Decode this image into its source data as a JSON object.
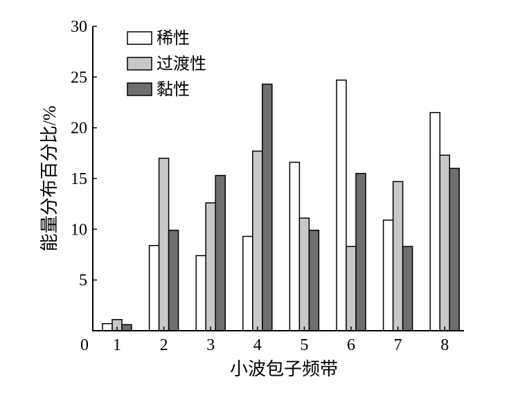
{
  "chart_data": {
    "type": "bar",
    "title": "",
    "xlabel": "小波包子频带",
    "ylabel": "能量分布百分比/%",
    "categories": [
      "1",
      "2",
      "3",
      "4",
      "5",
      "6",
      "7",
      "8"
    ],
    "ylim": [
      0,
      30
    ],
    "yticks": [
      5,
      10,
      15,
      20,
      25,
      30
    ],
    "origin_label": "0",
    "legend_position": "top-left",
    "grid": false,
    "series": [
      {
        "name": "稀性",
        "color": "#ffffff",
        "values": [
          0.7,
          8.4,
          7.4,
          9.3,
          16.6,
          24.7,
          10.9,
          21.5
        ]
      },
      {
        "name": "过渡性",
        "color": "#c8c8c8",
        "values": [
          1.1,
          17.0,
          12.6,
          17.7,
          11.1,
          8.3,
          14.7,
          17.3
        ]
      },
      {
        "name": "黏性",
        "color": "#6e6e6e",
        "values": [
          0.6,
          9.9,
          15.3,
          24.3,
          9.9,
          15.5,
          8.3,
          16.0
        ]
      }
    ]
  }
}
